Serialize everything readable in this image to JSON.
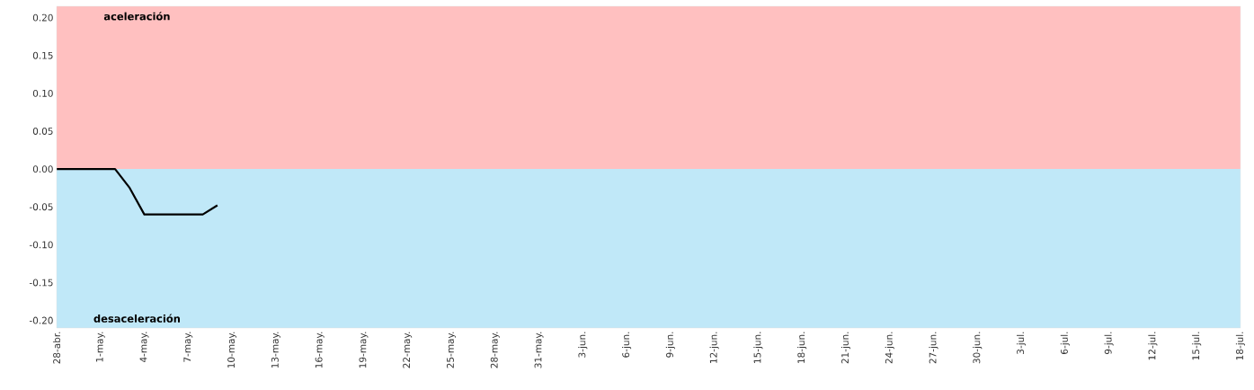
{
  "chart_data": {
    "type": "line",
    "categories": [
      "28-abr.",
      null,
      null,
      "1-may.",
      null,
      null,
      "4-may.",
      null,
      null,
      "7-may.",
      null,
      null,
      "10-may.",
      null,
      null,
      "13-may.",
      null,
      null,
      "16-may.",
      null,
      null,
      "19-may.",
      null,
      null,
      "22-may.",
      null,
      null,
      "25-may.",
      null,
      null,
      "28-may.",
      null,
      null,
      "31-may.",
      null,
      null,
      "3-jun.",
      null,
      null,
      "6-jun.",
      null,
      null,
      "9-jun.",
      null,
      null,
      "12-jun.",
      null,
      null,
      "15-jun.",
      null,
      null,
      "18-jun.",
      null,
      null,
      "21-jun.",
      null,
      null,
      "24-jun.",
      null,
      null,
      "27-jun.",
      null,
      null,
      "30-jun.",
      null,
      null,
      "3-jul.",
      null,
      null,
      "6-jul.",
      null,
      null,
      "9-jul.",
      null,
      null,
      "12-jul.",
      null,
      null,
      "15-jul.",
      null,
      null,
      "18-jul."
    ],
    "series": [
      {
        "color": "#000000",
        "values": [
          0,
          0,
          0,
          0,
          0,
          -0.025,
          -0.06,
          -0.06,
          -0.06,
          -0.06,
          -0.06,
          -0.048,
          null,
          null,
          null,
          null,
          null,
          null,
          null,
          null,
          null,
          null,
          null,
          null,
          null,
          null,
          null,
          null,
          null,
          null,
          null,
          null,
          null,
          null,
          null,
          null,
          null,
          null,
          null,
          null,
          null,
          null,
          null,
          null,
          null,
          null,
          null,
          null,
          null,
          null,
          null,
          null,
          null,
          null,
          null,
          null,
          null,
          null,
          null,
          null,
          null,
          null,
          null,
          null,
          null,
          null,
          null,
          null,
          null,
          null,
          null,
          null,
          null,
          null,
          null,
          null,
          null,
          null,
          null,
          null,
          null,
          null
        ]
      }
    ],
    "ylim": [
      -0.21,
      0.215
    ],
    "yticks": [
      {
        "value": -0.2,
        "label": "-0.20"
      },
      {
        "value": -0.15,
        "label": "-0.15"
      },
      {
        "value": -0.1,
        "label": "-0.10"
      },
      {
        "value": -0.05,
        "label": "-0.05"
      },
      {
        "value": 0,
        "label": "0.00"
      },
      {
        "value": 0.05,
        "label": "0.05"
      },
      {
        "value": 0.1,
        "label": "0.10"
      },
      {
        "value": 0.15,
        "label": "0.15"
      },
      {
        "value": 0.2,
        "label": "0.20"
      }
    ],
    "bands": [
      {
        "axis": "y",
        "from": 0,
        "to": 0.215,
        "label": "aceleración",
        "color": "#ffc0c0"
      },
      {
        "axis": "y",
        "from": -0.21,
        "to": 0,
        "label": "desaceleración",
        "color": "#c0e8f8"
      }
    ]
  }
}
